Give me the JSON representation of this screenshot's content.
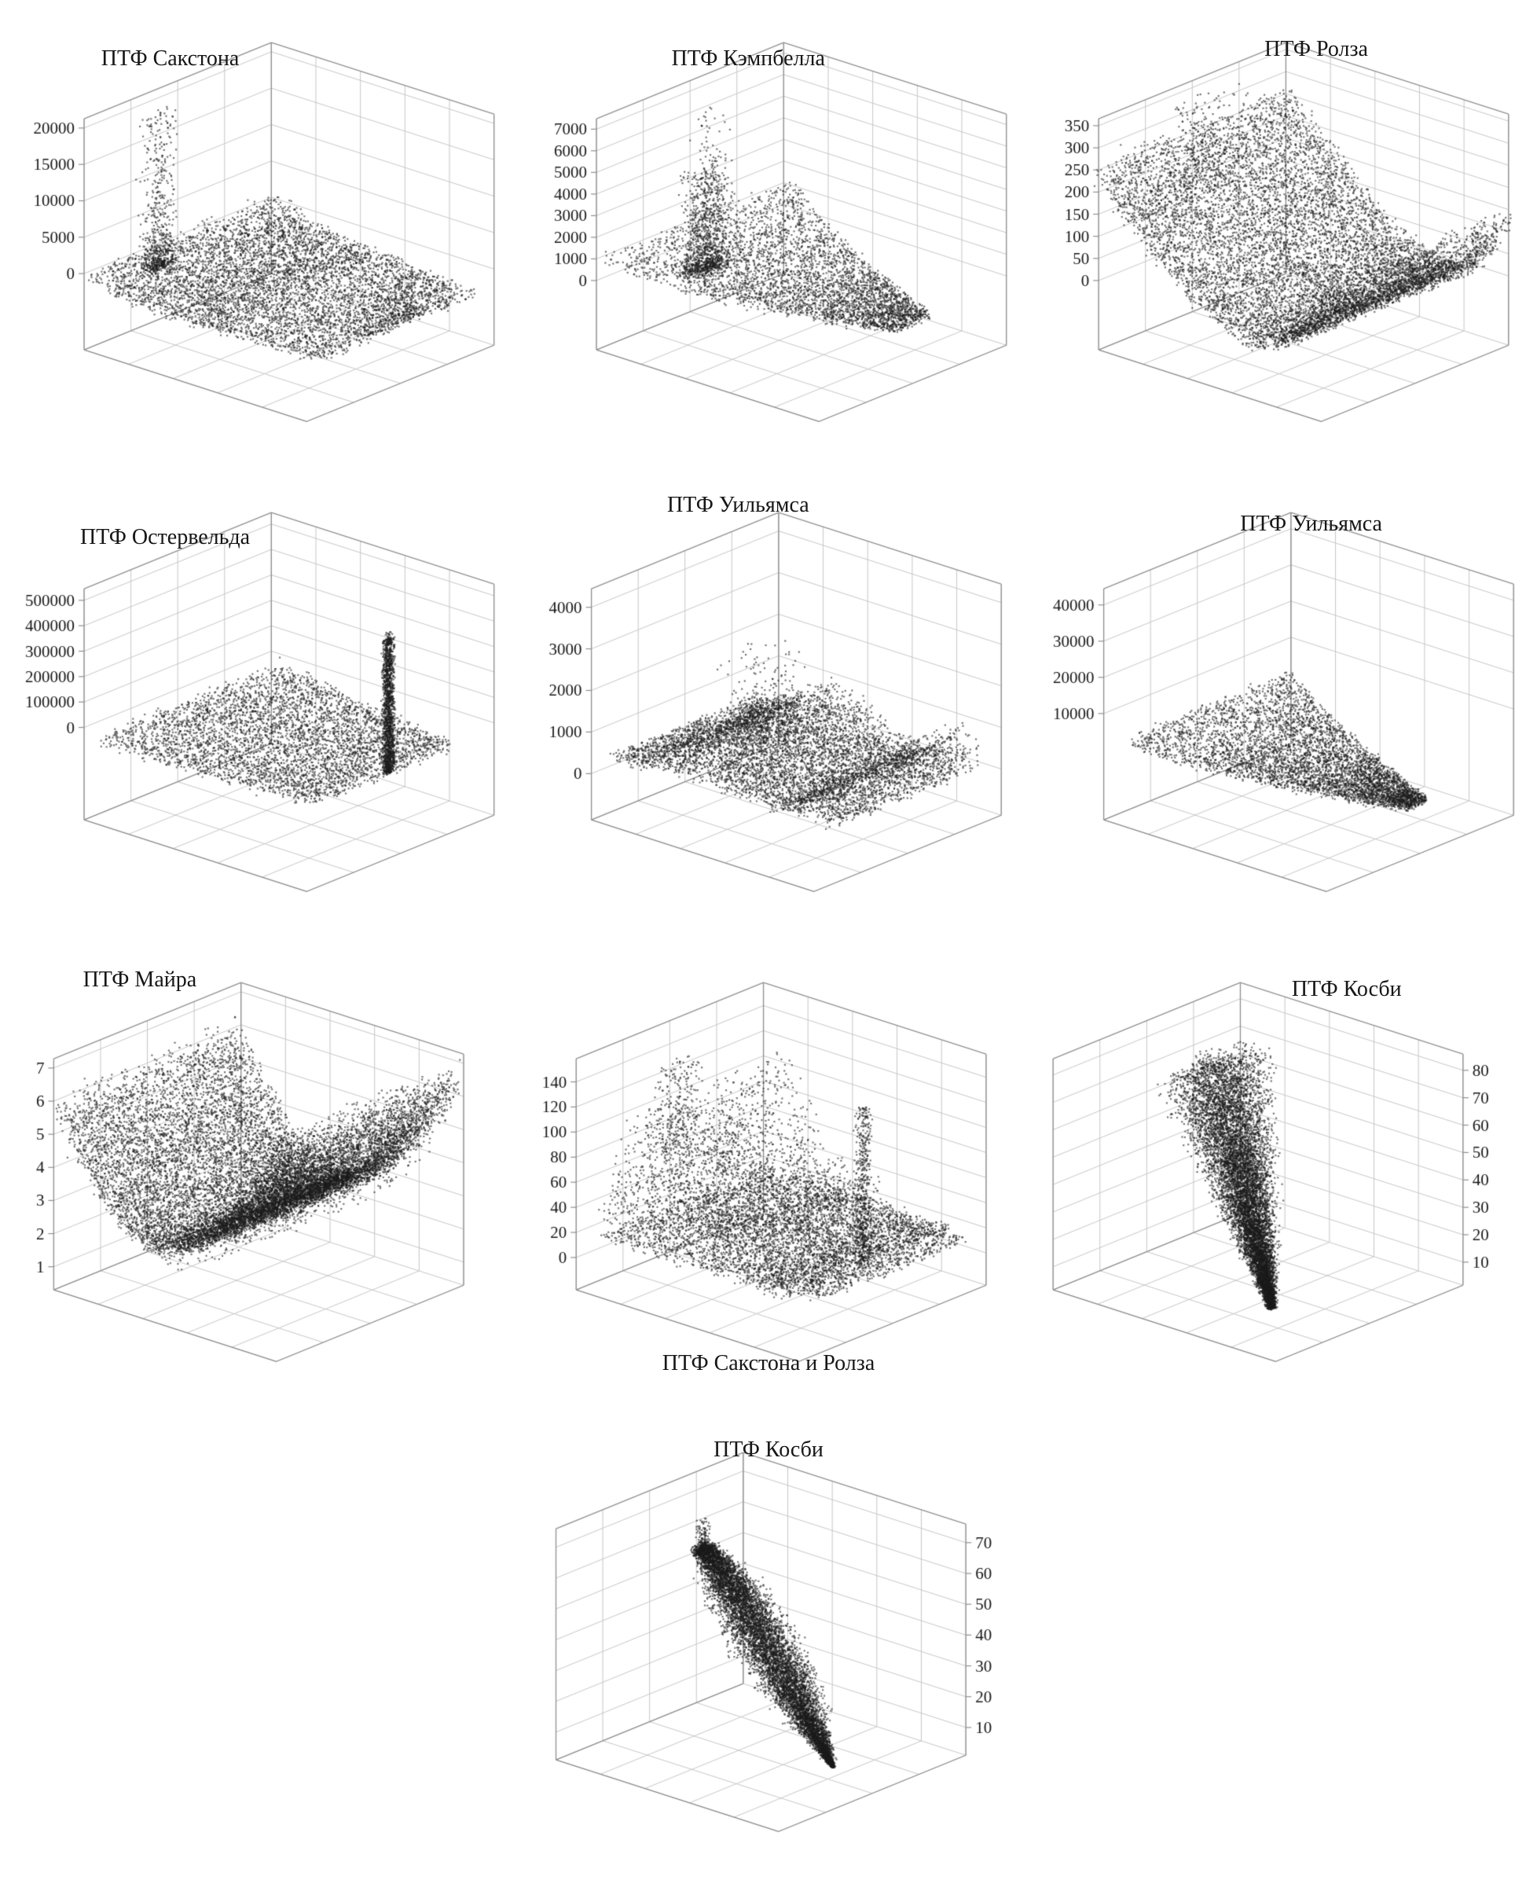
{
  "page": {
    "background": "#ffffff",
    "text_color": "#161616"
  },
  "chart_data": {
    "type": "scatter",
    "subtype": "3d-scatter-grid",
    "point_color": "#1a1a1a",
    "grid_color": "#c6c6c6",
    "edge_color": "#8f8f8f",
    "legend": "none",
    "grid": "on",
    "charts": [
      {
        "title": "ПТФ Сакстона",
        "z_ticks": [
          "0",
          "5000",
          "10000",
          "15000",
          "20000"
        ],
        "ticks_side": "left",
        "tick_lo": 0.33,
        "tick_hi": 0.96,
        "ox": 0.16,
        "title_pos": {
          "x": 0.33,
          "y": 0.11
        },
        "components": [
          {
            "shape": "slab",
            "n": 4500,
            "x0": 0.02,
            "x1": 0.99,
            "z0": 0.245,
            "amp": 0.09,
            "k": 5,
            "spread": 0.032,
            "w0": 1.05,
            "w1": 0.85
          },
          {
            "shape": "slab",
            "n": 1200,
            "x0": 0.02,
            "x1": 0.5,
            "z0": 0.23,
            "amp": 0.12,
            "k": 4,
            "spread": 0.05,
            "w0": 1.0,
            "w1": 0.8
          },
          {
            "shape": "spike",
            "n": 600,
            "cx": 0.1,
            "cy": 0.28,
            "sx": 0.035,
            "sy": 0.1,
            "z0": 0.3,
            "zmax": 0.97,
            "pow": 2.8
          },
          {
            "shape": "spike",
            "n": 250,
            "cx": 0.97,
            "cy": 0.5,
            "sx": 0.012,
            "sy": 0.25,
            "z0": 0.24,
            "zmax": 0.42,
            "pow": 1.6
          }
        ]
      },
      {
        "title": "ПТФ Кэмпбелла",
        "z_ticks": [
          "0",
          "1000",
          "2000",
          "3000",
          "4000",
          "5000",
          "6000",
          "7000"
        ],
        "ticks_side": "left",
        "tick_lo": 0.3,
        "tick_hi": 0.955,
        "ox": 0.16,
        "title_pos": {
          "x": 0.46,
          "y": 0.11
        },
        "components": [
          {
            "shape": "slab",
            "n": 3800,
            "x0": 0.03,
            "x1": 1.0,
            "z0": 0.255,
            "amp": 0.17,
            "k": 3.2,
            "spread": 0.028,
            "w0": 1.05,
            "w1": 0.2
          },
          {
            "shape": "spike",
            "n": 900,
            "cx": 0.17,
            "cy": 0.38,
            "sx": 0.06,
            "sy": 0.13,
            "z0": 0.28,
            "zmax": 0.72,
            "pow": 2.6
          },
          {
            "shape": "spike",
            "n": 140,
            "cx": 0.19,
            "cy": 0.38,
            "sx": 0.05,
            "sy": 0.1,
            "z0": 0.5,
            "zmax": 0.97,
            "pow": 1.8
          }
        ]
      },
      {
        "title": "ПТФ Ролза",
        "z_ticks": [
          "0",
          "50",
          "100",
          "150",
          "200",
          "250",
          "300",
          "350"
        ],
        "ticks_side": "left",
        "tick_lo": 0.3,
        "tick_hi": 0.97,
        "ox": 0.14,
        "title_pos": {
          "x": 0.57,
          "y": 0.09
        },
        "components": [
          {
            "shape": "valley",
            "n": 9500,
            "c": 0.68,
            "hl": 0.52,
            "hr": 0.3,
            "z0": 0.26,
            "spread": 0.045,
            "pl": 1.5,
            "pr": 2.8,
            "w": 1.05
          },
          {
            "shape": "spike",
            "n": 220,
            "cx": 0.07,
            "cy": 0.45,
            "sx": 0.05,
            "sy": 0.25,
            "z0": 0.55,
            "zmax": 0.98,
            "pow": 1.6
          }
        ]
      },
      {
        "title": "ПТФ Остервельда",
        "z_ticks": [
          "0",
          "100000",
          "200000",
          "300000",
          "400000",
          "500000"
        ],
        "ticks_side": "left",
        "tick_lo": 0.4,
        "tick_hi": 0.95,
        "ox": 0.16,
        "title_pos": {
          "x": 0.32,
          "y": 0.13
        },
        "components": [
          {
            "shape": "slab",
            "n": 4200,
            "x0": 0.05,
            "x1": 0.93,
            "z0": 0.32,
            "amp": 0.05,
            "k": 3,
            "spread": 0.035,
            "w0": 1.0,
            "w1": 0.75
          },
          {
            "shape": "spike",
            "n": 1400,
            "cx": 0.93,
            "cy": 0.52,
            "sx": 0.01,
            "sy": 0.035,
            "z0": 0.32,
            "zmax": 0.9,
            "pow": 1.15
          },
          {
            "shape": "spike",
            "n": 30,
            "cx": 0.93,
            "cy": 0.52,
            "sx": 0.006,
            "sy": 0.02,
            "z0": 0.88,
            "zmax": 0.93,
            "pow": 1
          }
        ]
      },
      {
        "title": "ПТФ Уильямса",
        "z_ticks": [
          "0",
          "1000",
          "2000",
          "3000",
          "4000"
        ],
        "ticks_side": "left",
        "tick_lo": 0.2,
        "tick_hi": 0.92,
        "ox": 0.15,
        "title_pos": {
          "x": 0.44,
          "y": 0.06
        },
        "components": [
          {
            "shape": "bumps",
            "n": 5200,
            "z0": 0.24,
            "spread": 0.03,
            "w": 0.8,
            "bumps": [
              {
                "c": 0.33,
                "h": 0.17,
                "s": 0.1
              },
              {
                "c": 0.52,
                "h": 0.1,
                "s": 0.09
              },
              {
                "c": 0.92,
                "h": 0.17,
                "s": 0.07
              }
            ]
          },
          {
            "shape": "slab",
            "n": 1500,
            "x0": 0.05,
            "x1": 0.98,
            "z0": 0.23,
            "amp": 0,
            "k": 0,
            "spread": 0.025,
            "w0": 0.7,
            "w1": 0.7
          },
          {
            "shape": "spike",
            "n": 260,
            "cx": 0.4,
            "cy": 0.45,
            "sx": 0.14,
            "sy": 0.18,
            "z0": 0.35,
            "zmax": 0.72,
            "pow": 2.2
          }
        ]
      },
      {
        "title": "ПТФ Уильямса",
        "z_ticks": [
          "10000",
          "20000",
          "30000",
          "40000"
        ],
        "ticks_side": "left",
        "tick_lo": 0.46,
        "tick_hi": 0.93,
        "ox": 0.15,
        "title_pos": {
          "x": 0.56,
          "y": 0.1
        },
        "components": [
          {
            "shape": "slab",
            "n": 4800,
            "x0": 0.04,
            "x1": 0.99,
            "z0": 0.2,
            "amp": 0.15,
            "k": 2.6,
            "spread": 0.026,
            "w0": 0.95,
            "w1": 0.1
          }
        ]
      },
      {
        "title": "ПТФ Майра",
        "z_ticks": [
          "1",
          "2",
          "3",
          "4",
          "5",
          "6",
          "7"
        ],
        "ticks_side": "left",
        "tick_lo": 0.1,
        "tick_hi": 0.96,
        "ox": 0.1,
        "title_pos": {
          "x": 0.27,
          "y": 0.07
        },
        "components": [
          {
            "shape": "valley",
            "n": 11000,
            "c": 0.44,
            "hl": 0.48,
            "hr": 0.6,
            "z0": 0.315,
            "spread": 0.05,
            "pl": 1.7,
            "pr": 1.8,
            "w": 1.0
          },
          {
            "shape": "valley",
            "n": 2500,
            "c": 0.44,
            "hl": 0.4,
            "hr": 0.52,
            "z0": 0.3,
            "spread": 0.1,
            "pl": 1.7,
            "pr": 1.8,
            "w": 0.9
          }
        ]
      },
      {
        "title": "ПТФ Сакстона и Ролза",
        "z_ticks": [
          "0",
          "20",
          "40",
          "60",
          "80",
          "100",
          "120",
          "140"
        ],
        "ticks_side": "left",
        "tick_lo": 0.14,
        "tick_hi": 0.9,
        "ox": 0.12,
        "title_pos": {
          "x": 0.5,
          "y": 0.9
        },
        "components": [
          {
            "shape": "slab",
            "n": 2800,
            "x0": 0.05,
            "x1": 0.9,
            "z0": 0.235,
            "amp": 0,
            "k": 0,
            "spread": 0.03,
            "w0": 0.9,
            "w1": 0.9
          },
          {
            "shape": "bumps",
            "n": 4200,
            "z0": 0.235,
            "spread": 0.03,
            "w": 0.8,
            "bumps": [
              {
                "c": 0.16,
                "h": 0.5,
                "s": 0.09
              },
              {
                "c": 0.3,
                "h": 0.3,
                "s": 0.07
              },
              {
                "c": 0.47,
                "h": 0.16,
                "s": 0.06
              },
              {
                "c": 0.6,
                "h": 0.13,
                "s": 0.05
              }
            ]
          },
          {
            "shape": "spike",
            "n": 260,
            "cx": 0.17,
            "cy": 0.35,
            "sx": 0.09,
            "sy": 0.12,
            "z0": 0.55,
            "zmax": 0.93,
            "pow": 1.4
          },
          {
            "shape": "spike",
            "n": 450,
            "cx": 0.87,
            "cy": 0.5,
            "sx": 0.011,
            "sy": 0.05,
            "z0": 0.22,
            "zmax": 0.9,
            "pow": 1.25
          }
        ]
      },
      {
        "title": "ПТФ Косби",
        "z_ticks": [
          "10",
          "20",
          "30",
          "40",
          "50",
          "60",
          "70",
          "80"
        ],
        "ticks_side": "right",
        "tick_lo": 0.1,
        "tick_hi": 0.93,
        "ox": 0.05,
        "title_pos": {
          "x": 0.63,
          "y": 0.09
        },
        "components": [
          {
            "shape": "drop",
            "n": 9000,
            "x0": 0.34,
            "x1": 0.52,
            "z0": 0.93,
            "z1": -0.1,
            "zpow": 1.1,
            "y0": 0.45,
            "y1": 0.55,
            "sx0": 0.09,
            "sx1": 0.015,
            "bx": 0.02,
            "sy0": 0.3,
            "sy1": 0.02,
            "by": 0,
            "tpow": 0.85
          },
          {
            "shape": "spike",
            "n": 120,
            "cx": 0.33,
            "cy": 0.45,
            "sx": 0.05,
            "sy": 0.15,
            "z0": 0.9,
            "zmax": 0.99,
            "pow": 2
          }
        ]
      },
      {
        "title": "ПТФ Косби",
        "z_ticks": [
          "10",
          "20",
          "30",
          "40",
          "50",
          "60",
          "70"
        ],
        "ticks_side": "right",
        "tick_lo": 0.12,
        "tick_hi": 0.92,
        "ox": 0.08,
        "title_pos": {
          "x": 0.5,
          "y": 0.07
        },
        "components": [
          {
            "shape": "drop",
            "n": 8500,
            "x0": 0.28,
            "x1": 0.74,
            "z0": 0.86,
            "z1": 0.0,
            "zpow": 1.15,
            "y0": 0.45,
            "y1": 0.6,
            "sx0": 0.035,
            "sx1": 0.008,
            "bx": 0.09,
            "sy0": 0.05,
            "sy1": 0.01,
            "by": 0.1,
            "tpow": 1
          },
          {
            "shape": "spike",
            "n": 140,
            "cx": 0.28,
            "cy": 0.45,
            "sx": 0.018,
            "sy": 0.04,
            "z0": 0.84,
            "zmax": 0.985,
            "pow": 1.6
          }
        ]
      }
    ]
  }
}
